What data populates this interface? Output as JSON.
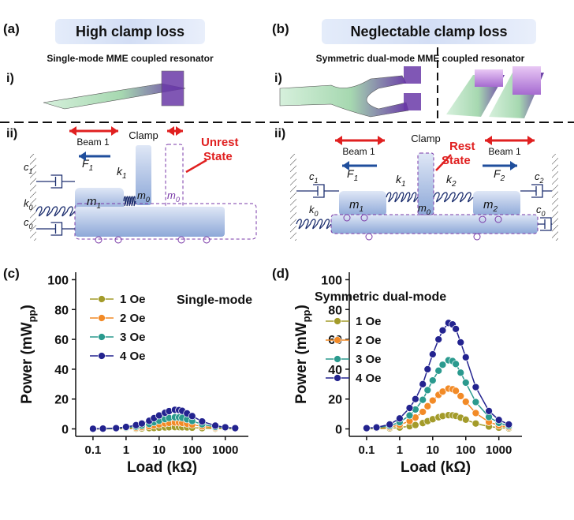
{
  "panels": {
    "a": {
      "label": "(a)",
      "title": "High clamp loss",
      "sub_i": "i)",
      "caption": "Single-mode MME coupled resonator",
      "sub_ii": "ii)",
      "beam": "Beam 1",
      "clamp": "Clamp",
      "state": [
        "Unrest",
        "State"
      ],
      "symbols": {
        "F1": {
          "base": "F",
          "sub": "1"
        },
        "k1": {
          "base": "k",
          "sub": "1"
        },
        "m1": {
          "base": "m",
          "sub": "1"
        },
        "m0": {
          "base": "m",
          "sub": "0"
        },
        "m0_ghost": {
          "base": "m",
          "sub": "0"
        },
        "c1": {
          "base": "c",
          "sub": "1"
        },
        "k0": {
          "base": "k",
          "sub": "0"
        },
        "c0": {
          "base": "c",
          "sub": "0"
        }
      }
    },
    "b": {
      "label": "(b)",
      "title": "Neglectable clamp loss",
      "sub_i": "i)",
      "caption": "Symmetric dual-mode MME coupled resonator",
      "sub_ii": "ii)",
      "beam_left": "Beam 1",
      "beam_right": "Beam 1",
      "clamp": "Clamp",
      "state": [
        "Rest",
        "State"
      ],
      "symbols": {
        "c1": {
          "base": "c",
          "sub": "1"
        },
        "F1": {
          "base": "F",
          "sub": "1"
        },
        "k1": {
          "base": "k",
          "sub": "1"
        },
        "m1": {
          "base": "m",
          "sub": "1"
        },
        "m0": {
          "base": "m",
          "sub": "0"
        },
        "k2": {
          "base": "k",
          "sub": "2"
        },
        "m2": {
          "base": "m",
          "sub": "2"
        },
        "F2": {
          "base": "F",
          "sub": "2"
        },
        "c2": {
          "base": "c",
          "sub": "2"
        },
        "k0": {
          "base": "k",
          "sub": "0"
        },
        "c0": {
          "base": "c",
          "sub": "0"
        }
      }
    }
  },
  "chart_data": [
    {
      "type": "line",
      "panel_label": "(c)",
      "annotation": "Single-mode",
      "ylabel": {
        "text": "Power (mW",
        "sub": "pp",
        "end": ")"
      },
      "xlabel": "Load (kΩ)",
      "xscale": "log",
      "xlim": [
        0.03,
        5000
      ],
      "xticks": [
        0.1,
        1,
        10,
        100,
        1000
      ],
      "ylim": [
        -5,
        105
      ],
      "yticks": [
        0,
        20,
        40,
        60,
        80,
        100
      ],
      "legend": "upper left",
      "x": [
        0.1,
        0.2,
        0.5,
        1,
        2,
        3,
        5,
        7,
        10,
        15,
        20,
        30,
        40,
        50,
        70,
        100,
        200,
        500,
        1000,
        2000
      ],
      "series": [
        {
          "name": "1 Oe",
          "color": "#a39b2a",
          "values": [
            0,
            0,
            0.1,
            0.1,
            0.2,
            0.3,
            0.5,
            0.6,
            0.8,
            1,
            1.1,
            1.2,
            1.2,
            1.1,
            1,
            0.8,
            0.5,
            0.2,
            0.1,
            0.1
          ]
        },
        {
          "name": "2 Oe",
          "color": "#f28a26",
          "values": [
            0,
            0.1,
            0.2,
            0.4,
            0.8,
            1.2,
            1.8,
            2.4,
            3,
            3.6,
            4,
            4.3,
            4.2,
            4,
            3.5,
            2.9,
            1.7,
            0.7,
            0.4,
            0.2
          ]
        },
        {
          "name": "3 Oe",
          "color": "#2a9a8e",
          "values": [
            0.1,
            0.1,
            0.3,
            0.8,
            1.5,
            2.2,
            3.3,
            4.4,
            5.5,
            6.6,
            7.3,
            7.8,
            7.7,
            7.4,
            6.4,
            5.3,
            3.1,
            1.3,
            0.7,
            0.3
          ]
        },
        {
          "name": "4 Oe",
          "color": "#23238f",
          "values": [
            0.1,
            0.2,
            0.5,
            1.3,
            2.5,
            3.6,
            5.4,
            7.2,
            9,
            10.8,
            11.9,
            12.8,
            12.6,
            12.1,
            10.4,
            8.6,
            5,
            2.2,
            1.1,
            0.5
          ]
        }
      ]
    },
    {
      "type": "line",
      "panel_label": "(d)",
      "annotation": "Symmetric dual-mode",
      "ylabel": {
        "text": "Power (mW",
        "sub": "pp",
        "end": ")"
      },
      "xlabel": "Load (kΩ)",
      "xscale": "log",
      "xlim": [
        0.03,
        5000
      ],
      "xticks": [
        0.1,
        1,
        10,
        100,
        1000
      ],
      "ylim": [
        -5,
        105
      ],
      "yticks": [
        0,
        20,
        40,
        60,
        80,
        100
      ],
      "legend": "upper left",
      "x": [
        0.1,
        0.2,
        0.5,
        1,
        2,
        3,
        5,
        7,
        10,
        15,
        20,
        30,
        40,
        50,
        70,
        100,
        200,
        500,
        1000,
        2000
      ],
      "series": [
        {
          "name": "1 Oe",
          "color": "#a39b2a",
          "values": [
            0.1,
            0.1,
            0.4,
            0.9,
            1.8,
            2.6,
            3.9,
            5.2,
            6.5,
            7.8,
            8.6,
            9.2,
            9.1,
            8.7,
            7.5,
            6.2,
            3.6,
            1.6,
            0.8,
            0.4
          ]
        },
        {
          "name": "2 Oe",
          "color": "#f28a26",
          "values": [
            0.2,
            0.4,
            1.1,
            2.7,
            5.3,
            7.6,
            11.4,
            15.2,
            19,
            22.8,
            25,
            27,
            26.6,
            25.5,
            22,
            18.2,
            10.6,
            4.6,
            2.3,
            1.1
          ]
        },
        {
          "name": "3 Oe",
          "color": "#2a9a8e",
          "values": [
            0.3,
            0.7,
            2,
            4.5,
            9,
            13,
            19.5,
            26,
            32.5,
            39,
            43,
            46,
            45.5,
            43.5,
            37.7,
            31,
            18,
            8,
            4,
            2
          ]
        },
        {
          "name": "4 Oe",
          "color": "#23238f",
          "values": [
            0.5,
            1,
            3,
            7,
            14,
            20,
            30,
            40,
            50,
            60,
            66,
            71,
            70,
            67,
            58,
            48,
            28,
            12,
            6,
            3
          ]
        }
      ]
    }
  ]
}
